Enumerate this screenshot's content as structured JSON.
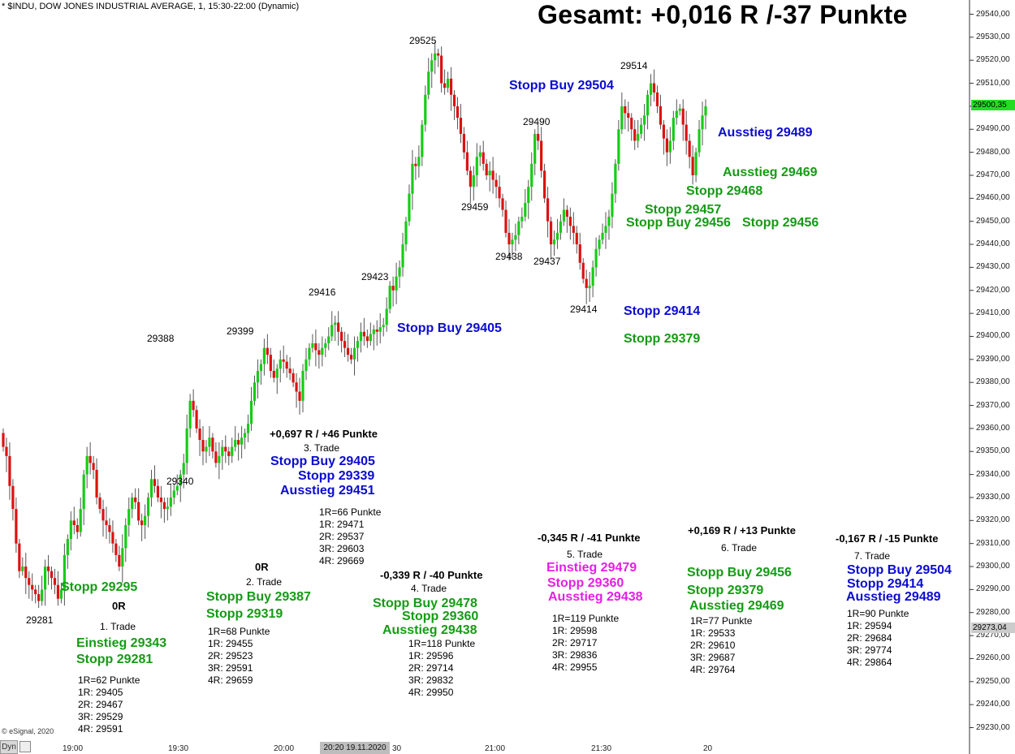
{
  "header": "* $INDU, DOW JONES INDUSTRIAL AVERAGE, 1, 15:30-22:00 (Dynamic)",
  "total": "Gesamt: +0,016 R /-37 Punkte",
  "copyright": "© eSignal, 2020",
  "dyn_label": "Dyn",
  "date_box": "20:20 19.11.2020",
  "colors": {
    "up": "#16cc16",
    "down": "#dd1111",
    "blue": "#0b0bd0",
    "green": "#159b15",
    "magenta": "#e61ee6",
    "price_tag_current": "#22dd22",
    "price_tag_low": "#cccccc"
  },
  "price_tags": {
    "current": "29500,35",
    "low": "29273,04"
  },
  "chart_data": {
    "type": "candlestick",
    "title": "DOW JONES INDUSTRIAL AVERAGE, 1",
    "ylim": [
      29225,
      29545
    ],
    "y_ticks": [
      29230,
      29240,
      29250,
      29260,
      29270,
      29280,
      29290,
      29300,
      29310,
      29320,
      29330,
      29340,
      29350,
      29360,
      29370,
      29380,
      29390,
      29400,
      29410,
      29420,
      29430,
      29440,
      29450,
      29460,
      29470,
      29480,
      29490,
      29500,
      29510,
      29520,
      29530,
      29540
    ],
    "y_tick_labels": [
      "29230,00",
      "29240,00",
      "29250,00",
      "29260,00",
      "29270,00",
      "29280,00",
      "29290,00",
      "29300,00",
      "29310,00",
      "29320,00",
      "29330,00",
      "29340,00",
      "29350,00",
      "29360,00",
      "29370,00",
      "29380,00",
      "29390,00",
      "29400,00",
      "29410,00",
      "29420,00",
      "29430,00",
      "29440,00",
      "29450,00",
      "29460,00",
      "29470,00",
      "29480,00",
      "29490,00",
      "29500,00",
      "29510,00",
      "29520,00",
      "29530,00",
      "29540,00"
    ],
    "x_tick_labels": [
      "19:00",
      "19:30",
      "20:00",
      "30",
      "21:00",
      "21:30",
      "20"
    ],
    "closes": [
      29352,
      29348,
      29335,
      29325,
      29310,
      29298,
      29300,
      29295,
      29292,
      29290,
      29288,
      29285,
      29290,
      29300,
      29298,
      29295,
      29292,
      29286,
      29290,
      29305,
      29312,
      29320,
      29318,
      29315,
      29325,
      29340,
      29348,
      29345,
      29342,
      29330,
      29325,
      29320,
      29318,
      29315,
      29310,
      29305,
      29300,
      29308,
      29318,
      29325,
      29330,
      29328,
      29320,
      29318,
      29322,
      29330,
      29338,
      29335,
      29330,
      29328,
      29325,
      29326,
      29330,
      29333,
      29335,
      29340,
      29345,
      29360,
      29372,
      29368,
      29360,
      29355,
      29350,
      29352,
      29356,
      29350,
      29345,
      29348,
      29352,
      29350,
      29348,
      29352,
      29355,
      29353,
      29356,
      29358,
      29362,
      29372,
      29380,
      29385,
      29388,
      29395,
      29392,
      29385,
      29382,
      29386,
      29390,
      29389,
      29386,
      29384,
      29380,
      29376,
      29372,
      29385,
      29390,
      29395,
      29397,
      29394,
      29392,
      29395,
      29397,
      29400,
      29405,
      29406,
      29402,
      29398,
      29395,
      29392,
      29390,
      29395,
      29398,
      29402,
      29400,
      29398,
      29401,
      29403,
      29402,
      29404,
      29405,
      29412,
      29422,
      29420,
      29426,
      29430,
      29440,
      29450,
      29462,
      29475,
      29474,
      29478,
      29492,
      29505,
      29515,
      29520,
      29523,
      29522,
      29510,
      29508,
      29512,
      29505,
      29500,
      29495,
      29488,
      29480,
      29472,
      29465,
      29470,
      29478,
      29480,
      29475,
      29470,
      29472,
      29468,
      29465,
      29460,
      29455,
      29445,
      29440,
      29442,
      29444,
      29450,
      29452,
      29458,
      29465,
      29475,
      29488,
      29485,
      29472,
      29460,
      29450,
      29440,
      29442,
      29445,
      29450,
      29455,
      29452,
      29448,
      29445,
      29440,
      29432,
      29425,
      29421,
      29422,
      29430,
      29438,
      29442,
      29445,
      29448,
      29452,
      29462,
      29475,
      29490,
      29500,
      29497,
      29495,
      29490,
      29485,
      29488,
      29492,
      29496,
      29505,
      29510,
      29506,
      29500,
      29492,
      29486,
      29480,
      29485,
      29495,
      29498,
      29499,
      29492,
      29485,
      29478,
      29470,
      29480,
      29490,
      29496,
      29500
    ]
  },
  "peaks": [
    {
      "text": "29525"
    },
    {
      "text": "29514"
    },
    {
      "text": "29490"
    },
    {
      "text": "29459"
    },
    {
      "text": "29438"
    },
    {
      "text": "29437"
    },
    {
      "text": "29414"
    },
    {
      "text": "29423"
    },
    {
      "text": "29416"
    },
    {
      "text": "29399"
    },
    {
      "text": "29388"
    },
    {
      "text": "29340"
    },
    {
      "text": "29281"
    }
  ],
  "annotations": {
    "stopp_buy_29504": "Stopp Buy 29504",
    "ausstieg_29489": "Ausstieg 29489",
    "ausstieg_29469": "Ausstieg 29469",
    "stopp_29468": "Stopp 29468",
    "stopp_29457": "Stopp 29457",
    "stopp_buy_29456": "Stopp Buy 29456",
    "stopp_29456": "Stopp 29456",
    "stopp_buy_29405": "Stopp Buy 29405",
    "stopp_29414": "Stopp 29414",
    "stopp_29379": "Stopp 29379",
    "stopp_29295": "Stopp 29295"
  },
  "trades": [
    {
      "result": "0R",
      "name": "1. Trade",
      "lines": [
        "Einstieg 29343",
        "Stopp 29281"
      ],
      "r_lines": [
        "1R=62 Punkte",
        "1R: 29405",
        "2R: 29467",
        "3R: 29529",
        "4R: 29591"
      ]
    },
    {
      "result": "0R",
      "name": "2. Trade",
      "lines": [
        "Stopp Buy 29387",
        "Stopp 29319"
      ],
      "r_lines": [
        "1R=68 Punkte",
        "1R: 29455",
        "2R: 29523",
        "3R: 29591",
        "4R: 29659"
      ]
    },
    {
      "result": "+0,697 R / +46 Punkte",
      "name": "3. Trade",
      "lines": [
        "Stopp Buy 29405",
        "Stopp 29339",
        "Ausstieg 29451"
      ],
      "r_lines": [
        "1R=66 Punkte",
        "1R: 29471",
        "2R: 29537",
        "3R: 29603",
        "4R: 29669"
      ]
    },
    {
      "result": "-0,339 R / -40 Punkte",
      "name": "4. Trade",
      "lines": [
        "Stopp Buy 29478",
        "Stopp 29360",
        "Ausstieg 29438"
      ],
      "r_lines": [
        "1R=118 Punkte",
        "1R: 29596",
        "2R: 29714",
        "3R: 29832",
        "4R: 29950"
      ]
    },
    {
      "result": "-0,345 R / -41 Punkte",
      "name": "5. Trade",
      "lines": [
        "Einstieg 29479",
        "Stopp 29360",
        "Ausstieg 29438"
      ],
      "r_lines": [
        "1R=119 Punkte",
        "1R: 29598",
        "2R: 29717",
        "3R: 29836",
        "4R: 29955"
      ]
    },
    {
      "result": "+0,169 R / +13 Punkte",
      "name": "6. Trade",
      "lines": [
        "Stopp Buy 29456",
        "Stopp 29379",
        "Ausstieg 29469"
      ],
      "r_lines": [
        "1R=77 Punkte",
        "1R: 29533",
        "2R: 29610",
        "3R: 29687",
        "4R: 29764"
      ]
    },
    {
      "result": "-0,167 R / -15 Punkte",
      "name": "7. Trade",
      "lines": [
        "Stopp Buy 29504",
        "Stopp 29414",
        "Ausstieg 29489"
      ],
      "r_lines": [
        "1R=90 Punkte",
        "1R: 29594",
        "2R: 29684",
        "3R: 29774",
        "4R: 29864"
      ]
    }
  ]
}
